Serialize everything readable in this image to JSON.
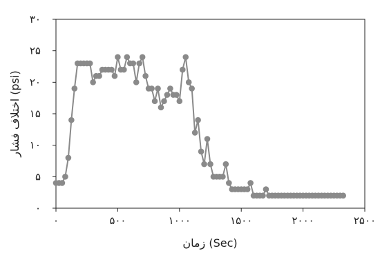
{
  "chart_data": {
    "type": "line",
    "xlabel": "زمان (Sec)",
    "ylabel": "اختلاف فشار (psi)",
    "xlim": [
      0,
      2500
    ],
    "ylim": [
      0,
      30
    ],
    "x_ticks": [
      0,
      500,
      1000,
      1500,
      2000,
      2500
    ],
    "y_ticks": [
      0,
      5,
      10,
      15,
      20,
      25,
      30
    ],
    "x_tick_labels": [
      "۰",
      "۵۰۰",
      "۱۰۰۰",
      "۱۵۰۰",
      "۲۰۰۰",
      "۲۵۰۰"
    ],
    "y_tick_labels": [
      "۰",
      "۵",
      "۱۰",
      "۱۵",
      "۲۰",
      "۲۵",
      "۳۰"
    ],
    "grid": false,
    "legend": "none",
    "series": [
      {
        "line_color": "#8a8a8a",
        "marker_color": "#8a8a8a",
        "marker": "circle",
        "x": [
          0,
          25,
          50,
          75,
          100,
          125,
          150,
          175,
          200,
          225,
          250,
          275,
          300,
          325,
          350,
          375,
          400,
          425,
          450,
          475,
          500,
          525,
          550,
          575,
          600,
          625,
          650,
          675,
          700,
          725,
          750,
          775,
          800,
          825,
          850,
          875,
          900,
          925,
          950,
          975,
          1000,
          1025,
          1050,
          1075,
          1100,
          1125,
          1150,
          1175,
          1200,
          1225,
          1250,
          1275,
          1300,
          1325,
          1350,
          1375,
          1400,
          1425,
          1450,
          1475,
          1500,
          1525,
          1550,
          1575,
          1600,
          1625,
          1650,
          1675,
          1700,
          1725,
          1750,
          1775,
          1800,
          1825,
          1850,
          1875,
          1900,
          1925,
          1950,
          1975,
          2000,
          2025,
          2050,
          2075,
          2100,
          2125,
          2150,
          2175,
          2200,
          2225,
          2250,
          2275,
          2300,
          2325
        ],
        "y": [
          4,
          4,
          4,
          5,
          8,
          14,
          19,
          23,
          23,
          23,
          23,
          23,
          20,
          21,
          21,
          22,
          22,
          22,
          22,
          21,
          24,
          22,
          22,
          24,
          23,
          23,
          20,
          23,
          24,
          21,
          19,
          19,
          17,
          19,
          16,
          17,
          18,
          19,
          18,
          18,
          17,
          22,
          24,
          20,
          19,
          12,
          14,
          9,
          7,
          11,
          7,
          5,
          5,
          5,
          5,
          7,
          4,
          3,
          3,
          3,
          3,
          3,
          3,
          4,
          2,
          2,
          2,
          2,
          3,
          2,
          2,
          2,
          2,
          2,
          2,
          2,
          2,
          2,
          2,
          2,
          2,
          2,
          2,
          2,
          2,
          2,
          2,
          2,
          2,
          2,
          2,
          2,
          2,
          2
        ]
      }
    ]
  }
}
